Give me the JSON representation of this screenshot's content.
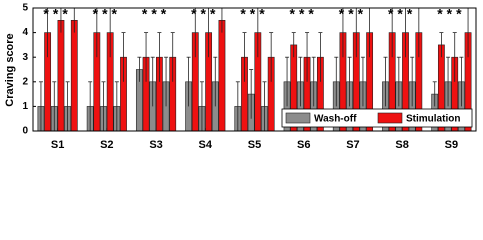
{
  "chart_data": {
    "type": "bar",
    "y_label": "Craving score",
    "categories": [
      "S1",
      "S2",
      "S3",
      "S4",
      "S5",
      "S6",
      "S7",
      "S8",
      "S9"
    ],
    "annotations": [
      "***",
      "***",
      "***",
      "***",
      "***",
      "***",
      "***",
      "***",
      "***"
    ],
    "annotation_color": "#2b3bd8",
    "series": [
      {
        "name": "Wash-off",
        "color": "#8c8c8c",
        "values": [
          [
            1,
            1,
            1
          ],
          [
            1,
            1,
            1
          ],
          [
            2.5,
            2,
            2
          ],
          [
            2,
            1,
            2
          ],
          [
            1,
            1.5,
            1
          ],
          [
            2,
            2,
            2
          ],
          [
            2,
            2,
            2
          ],
          [
            2,
            2,
            2
          ],
          [
            1.5,
            2,
            2
          ]
        ],
        "errors": [
          [
            1,
            1,
            1
          ],
          [
            1,
            1,
            1
          ],
          [
            0.5,
            1,
            1
          ],
          [
            1,
            1,
            1
          ],
          [
            1,
            1,
            1
          ],
          [
            1,
            1,
            1
          ],
          [
            1,
            1,
            1
          ],
          [
            1,
            1,
            1
          ],
          [
            0.5,
            1,
            1
          ]
        ]
      },
      {
        "name": "Stimulation",
        "color": "#ee1111",
        "values": [
          [
            4,
            4.5,
            4.5
          ],
          [
            4,
            4,
            3
          ],
          [
            3,
            3,
            3
          ],
          [
            4,
            4,
            4.5
          ],
          [
            3,
            4,
            3
          ],
          [
            3.5,
            3,
            3
          ],
          [
            4,
            4,
            4
          ],
          [
            4,
            4,
            4
          ],
          [
            3.5,
            3,
            4
          ]
        ],
        "errors": [
          [
            1,
            0.5,
            0.5
          ],
          [
            1,
            1,
            1
          ],
          [
            1,
            1,
            1
          ],
          [
            1,
            1,
            0.5
          ],
          [
            1,
            1,
            1
          ],
          [
            0.5,
            1,
            1
          ],
          [
            1,
            1,
            1
          ],
          [
            1,
            1,
            1
          ],
          [
            0.5,
            1,
            1
          ]
        ]
      }
    ],
    "ylim": [
      0,
      5
    ],
    "yticks": [
      0,
      1,
      2,
      3,
      4,
      5
    ],
    "legend": "lower right"
  }
}
